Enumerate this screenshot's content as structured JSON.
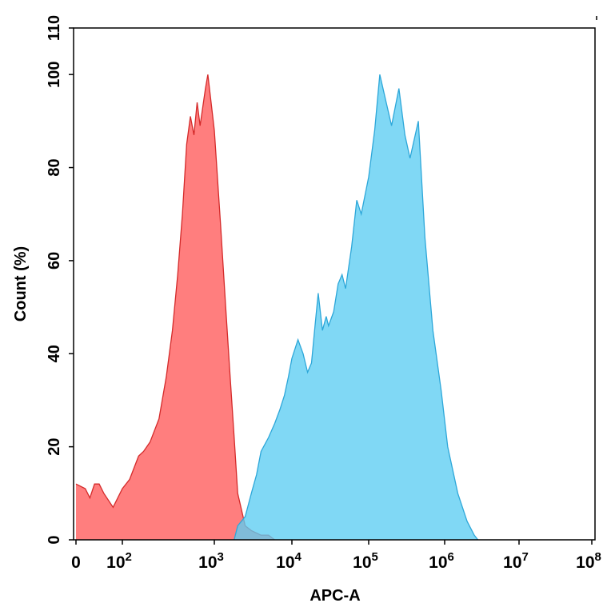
{
  "chart_data": {
    "type": "area",
    "xlabel": "APC-A",
    "ylabel": "Count (%)",
    "x_scale": "biexponential",
    "xlim": [
      0,
      100000000
    ],
    "ylim": [
      0,
      110
    ],
    "x_ticks": [
      {
        "value": 0,
        "base": "0",
        "exp": ""
      },
      {
        "value": 100,
        "base": "10",
        "exp": "2"
      },
      {
        "value": 1000,
        "base": "10",
        "exp": "3"
      },
      {
        "value": 10000,
        "base": "10",
        "exp": "4"
      },
      {
        "value": 100000,
        "base": "10",
        "exp": "5"
      },
      {
        "value": 1000000,
        "base": "10",
        "exp": "6"
      },
      {
        "value": 10000000,
        "base": "10",
        "exp": "7"
      },
      {
        "value": 100000000,
        "base": "10",
        "exp": "8"
      }
    ],
    "y_ticks": [
      0,
      20,
      40,
      60,
      80,
      100,
      110
    ],
    "grid": false,
    "series": [
      {
        "color": "#ff5a5a",
        "stroke": "#d42a2a",
        "points": [
          [
            0,
            12
          ],
          [
            20,
            11
          ],
          [
            30,
            9
          ],
          [
            40,
            12
          ],
          [
            50,
            12
          ],
          [
            60,
            10
          ],
          [
            80,
            7
          ],
          [
            100,
            11
          ],
          [
            120,
            13
          ],
          [
            150,
            18
          ],
          [
            170,
            19
          ],
          [
            200,
            21
          ],
          [
            250,
            26
          ],
          [
            300,
            35
          ],
          [
            350,
            45
          ],
          [
            400,
            57
          ],
          [
            450,
            70
          ],
          [
            500,
            85
          ],
          [
            550,
            91
          ],
          [
            600,
            87
          ],
          [
            650,
            94
          ],
          [
            700,
            89
          ],
          [
            800,
            97
          ],
          [
            850,
            100
          ],
          [
            1000,
            88
          ],
          [
            1200,
            68
          ],
          [
            1400,
            50
          ],
          [
            1600,
            35
          ],
          [
            1800,
            22
          ],
          [
            2000,
            10
          ],
          [
            2500,
            3
          ],
          [
            3000,
            2
          ],
          [
            4000,
            1
          ],
          [
            5000,
            1
          ],
          [
            6000,
            0
          ]
        ]
      },
      {
        "color": "#5ccdf2",
        "stroke": "#2da7d9",
        "points": [
          [
            1800,
            0
          ],
          [
            2000,
            3
          ],
          [
            2500,
            5
          ],
          [
            3000,
            10
          ],
          [
            3500,
            14
          ],
          [
            4000,
            19
          ],
          [
            5000,
            22
          ],
          [
            6000,
            25
          ],
          [
            7000,
            28
          ],
          [
            8000,
            31
          ],
          [
            9000,
            35
          ],
          [
            10000,
            39
          ],
          [
            12000,
            43
          ],
          [
            14000,
            40
          ],
          [
            16000,
            36
          ],
          [
            18000,
            38
          ],
          [
            20000,
            46
          ],
          [
            22000,
            53
          ],
          [
            25000,
            45
          ],
          [
            28000,
            48
          ],
          [
            30000,
            46
          ],
          [
            35000,
            49
          ],
          [
            40000,
            55
          ],
          [
            45000,
            57
          ],
          [
            50000,
            54
          ],
          [
            60000,
            63
          ],
          [
            70000,
            73
          ],
          [
            80000,
            70
          ],
          [
            100000,
            78
          ],
          [
            120000,
            88
          ],
          [
            140000,
            100
          ],
          [
            170000,
            94
          ],
          [
            200000,
            89
          ],
          [
            250000,
            97
          ],
          [
            300000,
            87
          ],
          [
            350000,
            82
          ],
          [
            450000,
            90
          ],
          [
            550000,
            65
          ],
          [
            700000,
            45
          ],
          [
            900000,
            32
          ],
          [
            1100000,
            20
          ],
          [
            1500000,
            10
          ],
          [
            2000000,
            4
          ],
          [
            2500000,
            1
          ],
          [
            2800000,
            0
          ]
        ]
      }
    ]
  }
}
